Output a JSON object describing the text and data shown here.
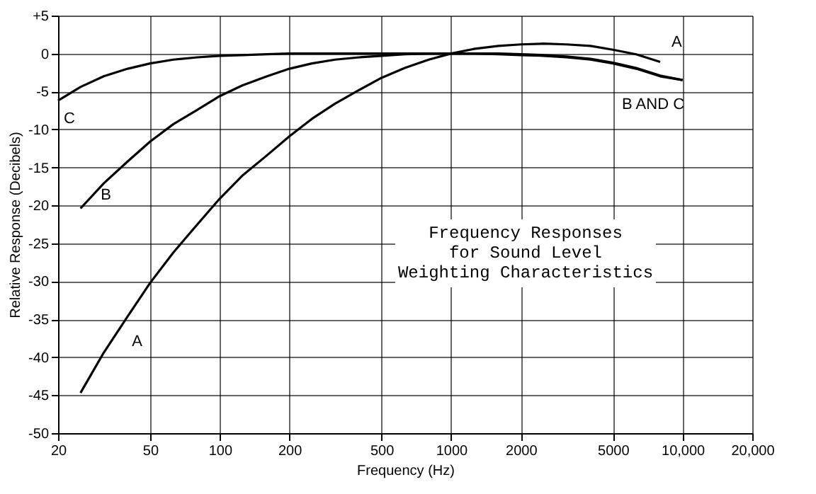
{
  "chart_data": {
    "type": "line",
    "xlabel": "Frequency (Hz)",
    "ylabel": "Relative Response (Decibels)",
    "log": "x",
    "grid": true,
    "marker": "none",
    "line_style": "solid",
    "xlim": [
      20,
      20000
    ],
    "ylim": [
      -50,
      5
    ],
    "xticks": [
      20,
      50,
      100,
      200,
      500,
      1000,
      2000,
      5000,
      {
        "value": 10000,
        "label": "10,000"
      },
      {
        "value": 20000,
        "label": "20,000"
      }
    ],
    "yticks": [
      -50,
      -45,
      -40,
      -35,
      -30,
      -25,
      -20,
      -15,
      -10,
      -5,
      0,
      {
        "value": 5,
        "label": "+5"
      }
    ],
    "series": [
      {
        "name": "A",
        "color": "#000000",
        "x": [
          25,
          31.5,
          40,
          50,
          63,
          80,
          100,
          125,
          160,
          200,
          250,
          315,
          400,
          500,
          630,
          800,
          1000,
          1250,
          1600,
          2000,
          2500,
          3150,
          4000,
          5000,
          6300,
          8000
        ],
        "values": [
          -44.7,
          -39.4,
          -34.6,
          -30.2,
          -26.2,
          -22.5,
          -19.1,
          -16.1,
          -13.4,
          -10.9,
          -8.6,
          -6.6,
          -4.8,
          -3.2,
          -1.9,
          -0.8,
          0,
          0.6,
          1.0,
          1.2,
          1.3,
          1.2,
          1.0,
          0.5,
          -0.1,
          -1.1
        ]
      },
      {
        "name": "B",
        "color": "#000000",
        "x": [
          25,
          31.5,
          40,
          50,
          63,
          80,
          100,
          125,
          160,
          200,
          250,
          315,
          400,
          500,
          630,
          800,
          1000,
          1250,
          1600,
          2000,
          2500,
          3150,
          4000,
          5000,
          6300,
          8000,
          10000
        ],
        "values": [
          -20.4,
          -17.1,
          -14.2,
          -11.6,
          -9.3,
          -7.4,
          -5.6,
          -4.2,
          -3.0,
          -2.0,
          -1.3,
          -0.8,
          -0.5,
          -0.3,
          -0.1,
          0,
          0,
          0,
          0,
          -0.1,
          -0.2,
          -0.4,
          -0.7,
          -1.2,
          -1.9,
          -2.9,
          -3.5
        ]
      },
      {
        "name": "C",
        "color": "#000000",
        "x": [
          20,
          25,
          31.5,
          40,
          50,
          63,
          80,
          100,
          125,
          160,
          200,
          250,
          315,
          400,
          500,
          630,
          800,
          1000,
          1250,
          1600,
          2000,
          2500,
          3150,
          4000,
          5000,
          6300,
          8000,
          10000
        ],
        "values": [
          -6.2,
          -4.4,
          -3.0,
          -2.0,
          -1.3,
          -0.8,
          -0.5,
          -0.3,
          -0.2,
          -0.1,
          0,
          0,
          0,
          0,
          0,
          0,
          0,
          0,
          0,
          -0.1,
          -0.2,
          -0.3,
          -0.5,
          -0.8,
          -1.3,
          -2.0,
          -3.0,
          -3.5
        ]
      }
    ],
    "annotations": [
      "Frequency Responses\nfor Sound Level\nWeighting Characteristics",
      "A",
      "B AND C"
    ]
  }
}
